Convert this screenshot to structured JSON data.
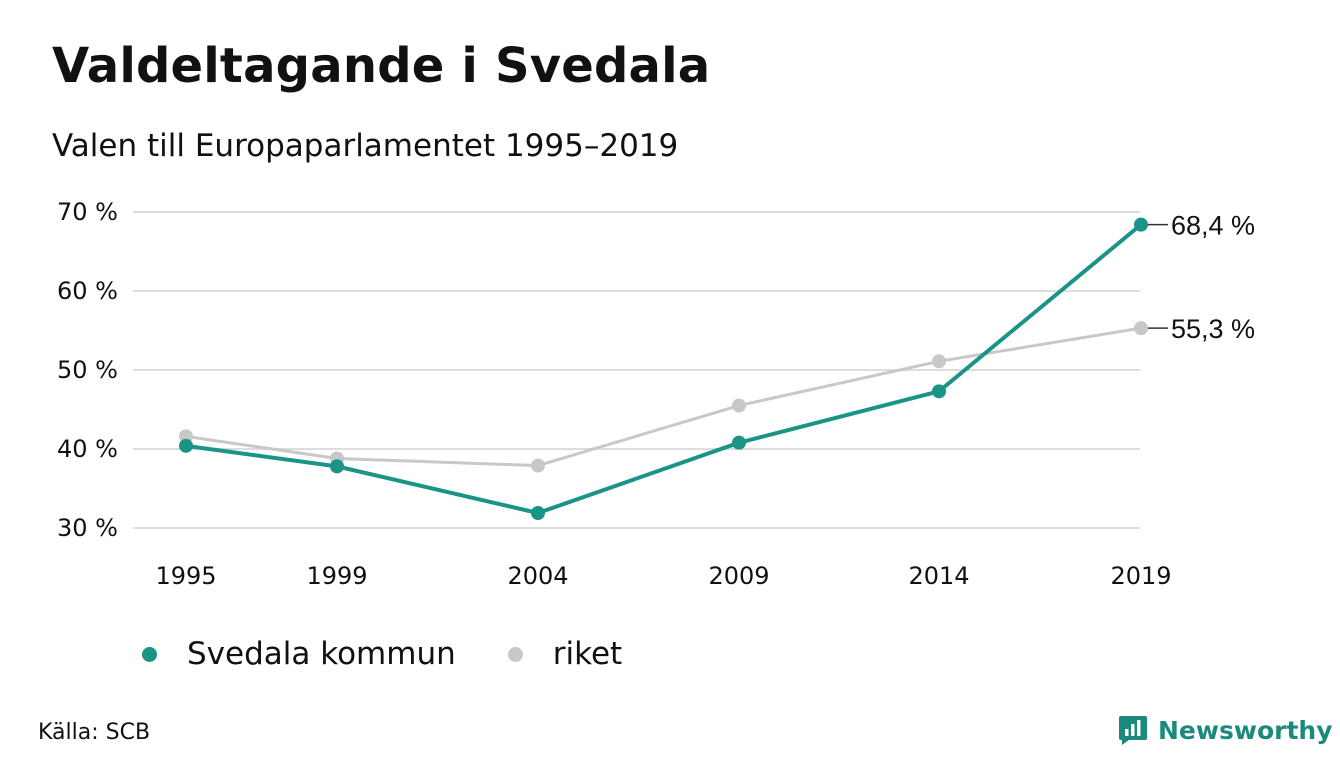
{
  "title": "Valdeltagande i Svedala",
  "subtitle": "Valen till Europaparlamentet 1995–2019",
  "source": "Källa: SCB",
  "brand": {
    "name": "Newsworthy",
    "icon": "newsworthy-logo-icon"
  },
  "colors": {
    "svedala": "#1a9485",
    "riket": "#c8c8c8",
    "grid": "#dddddd",
    "brand": "#1a8a7c"
  },
  "chart_data": {
    "type": "line",
    "categories": [
      "1995",
      "1999",
      "2004",
      "2009",
      "2014",
      "2019"
    ],
    "ylim": [
      30,
      70
    ],
    "yticks": [
      70,
      60,
      50,
      40,
      30
    ],
    "ytick_labels": [
      "70 %",
      "60 %",
      "50 %",
      "40 %",
      "30 %"
    ],
    "grid": true,
    "legend_position": "bottom-left",
    "series": [
      {
        "name": "Svedala kommun",
        "values": [
          40.4,
          37.8,
          31.9,
          40.8,
          47.3,
          68.4
        ],
        "end_label": "68,4 %"
      },
      {
        "name": "riket",
        "values": [
          41.6,
          38.8,
          37.9,
          45.5,
          51.1,
          55.3
        ],
        "end_label": "55,3 %"
      }
    ]
  }
}
